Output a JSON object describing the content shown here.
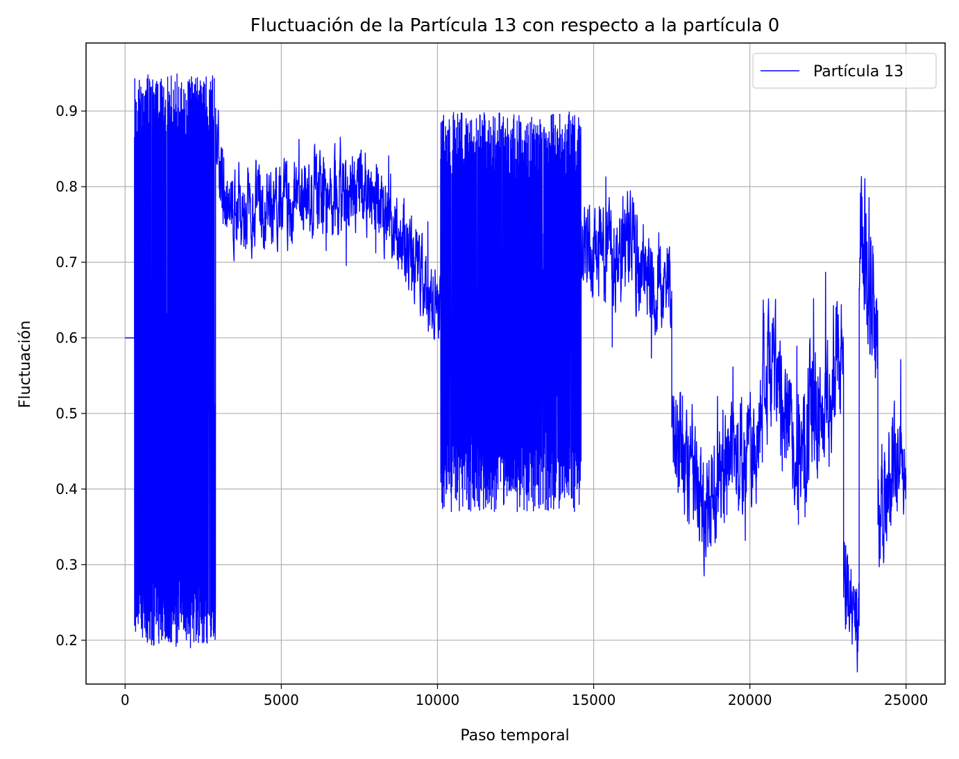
{
  "chart_data": {
    "type": "line",
    "title": "Fluctuación de la Partícula 13 con respecto a la partícula 0",
    "xlabel": "Paso temporal",
    "ylabel": "Fluctuación",
    "xlim": [
      -1250,
      26250
    ],
    "ylim": [
      0.142,
      0.99
    ],
    "xticks": [
      0,
      5000,
      10000,
      15000,
      20000,
      25000
    ],
    "xtick_labels": [
      "0",
      "5000",
      "10000",
      "15000",
      "20000",
      "25000"
    ],
    "yticks": [
      0.2,
      0.3,
      0.4,
      0.5,
      0.6,
      0.7,
      0.8,
      0.9
    ],
    "ytick_labels": [
      "0.2",
      "0.3",
      "0.4",
      "0.5",
      "0.6",
      "0.7",
      "0.8",
      "0.9"
    ],
    "grid": true,
    "legend_position": "top-right",
    "series": [
      {
        "name": "Partícula 13",
        "color": "#0000ff",
        "segments": [
          {
            "x_start": 0,
            "x_end": 300,
            "pattern": "flat",
            "level": 0.6
          },
          {
            "x_start": 300,
            "x_end": 2900,
            "pattern": "oscillate",
            "low": 0.19,
            "high": 0.95
          },
          {
            "x_start": 2900,
            "x_end": 8600,
            "pattern": "noise",
            "levels": [
              [
                2900,
                0.87
              ],
              [
                3200,
                0.78
              ],
              [
                4000,
                0.77
              ],
              [
                5000,
                0.78
              ],
              [
                6000,
                0.79
              ],
              [
                7000,
                0.78
              ],
              [
                7400,
                0.8
              ],
              [
                8000,
                0.79
              ],
              [
                8600,
                0.75
              ]
            ],
            "amp": 0.05
          },
          {
            "x_start": 8600,
            "x_end": 10100,
            "pattern": "noise",
            "levels": [
              [
                8600,
                0.74
              ],
              [
                9200,
                0.71
              ],
              [
                9600,
                0.66
              ],
              [
                10100,
                0.64
              ]
            ],
            "amp": 0.05
          },
          {
            "x_start": 10100,
            "x_end": 14600,
            "pattern": "oscillate",
            "low": 0.37,
            "high": 0.9
          },
          {
            "x_start": 14600,
            "x_end": 17500,
            "pattern": "noise",
            "levels": [
              [
                14600,
                0.73
              ],
              [
                15500,
                0.7
              ],
              [
                16200,
                0.72
              ],
              [
                16800,
                0.68
              ],
              [
                17500,
                0.68
              ]
            ],
            "amp": 0.06
          },
          {
            "x_start": 17500,
            "x_end": 20400,
            "pattern": "noise",
            "levels": [
              [
                17500,
                0.46
              ],
              [
                18000,
                0.42
              ],
              [
                18600,
                0.37
              ],
              [
                19200,
                0.45
              ],
              [
                19800,
                0.44
              ],
              [
                20400,
                0.48
              ]
            ],
            "amp": 0.07
          },
          {
            "x_start": 20400,
            "x_end": 23000,
            "pattern": "noise",
            "levels": [
              [
                20400,
                0.57
              ],
              [
                21000,
                0.52
              ],
              [
                21500,
                0.44
              ],
              [
                22000,
                0.52
              ],
              [
                22500,
                0.5
              ],
              [
                23000,
                0.58
              ]
            ],
            "amp": 0.08
          },
          {
            "x_start": 23000,
            "x_end": 23500,
            "pattern": "noise",
            "levels": [
              [
                23000,
                0.3
              ],
              [
                23500,
                0.22
              ]
            ],
            "amp": 0.06
          },
          {
            "x_start": 23500,
            "x_end": 24100,
            "pattern": "noise",
            "levels": [
              [
                23500,
                0.72
              ],
              [
                23800,
                0.7
              ],
              [
                24100,
                0.6
              ]
            ],
            "amp": 0.09
          },
          {
            "x_start": 24100,
            "x_end": 25000,
            "pattern": "noise",
            "levels": [
              [
                24100,
                0.36
              ],
              [
                24500,
                0.42
              ],
              [
                25000,
                0.46
              ]
            ],
            "amp": 0.07
          }
        ]
      }
    ]
  }
}
